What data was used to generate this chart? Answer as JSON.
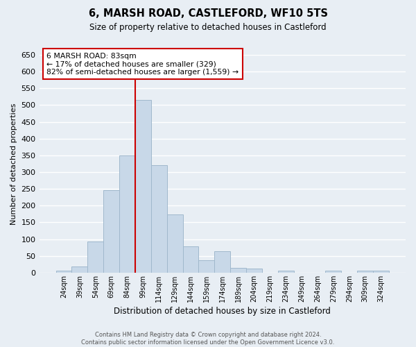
{
  "title": "6, MARSH ROAD, CASTLEFORD, WF10 5TS",
  "subtitle": "Size of property relative to detached houses in Castleford",
  "xlabel": "Distribution of detached houses by size in Castleford",
  "ylabel": "Number of detached properties",
  "footer_line1": "Contains HM Land Registry data © Crown copyright and database right 2024.",
  "footer_line2": "Contains public sector information licensed under the Open Government Licence v3.0.",
  "bar_labels": [
    "24sqm",
    "39sqm",
    "54sqm",
    "69sqm",
    "84sqm",
    "99sqm",
    "114sqm",
    "129sqm",
    "144sqm",
    "159sqm",
    "174sqm",
    "189sqm",
    "204sqm",
    "219sqm",
    "234sqm",
    "249sqm",
    "264sqm",
    "279sqm",
    "294sqm",
    "309sqm",
    "324sqm"
  ],
  "bar_values": [
    5,
    18,
    92,
    247,
    350,
    515,
    320,
    173,
    78,
    37,
    65,
    15,
    12,
    0,
    5,
    0,
    0,
    5,
    0,
    5,
    5
  ],
  "bar_color": "#c8d8e8",
  "bar_edge_color": "#a0b8cc",
  "vline_index": 4,
  "vline_color": "#cc0000",
  "ylim": [
    0,
    650
  ],
  "yticks": [
    0,
    50,
    100,
    150,
    200,
    250,
    300,
    350,
    400,
    450,
    500,
    550,
    600,
    650
  ],
  "annotation_title": "6 MARSH ROAD: 83sqm",
  "annotation_line1": "← 17% of detached houses are smaller (329)",
  "annotation_line2": "82% of semi-detached houses are larger (1,559) →",
  "annotation_box_color": "#ffffff",
  "annotation_box_edge": "#cc0000",
  "bg_color": "#e8eef4",
  "grid_color": "#ffffff"
}
